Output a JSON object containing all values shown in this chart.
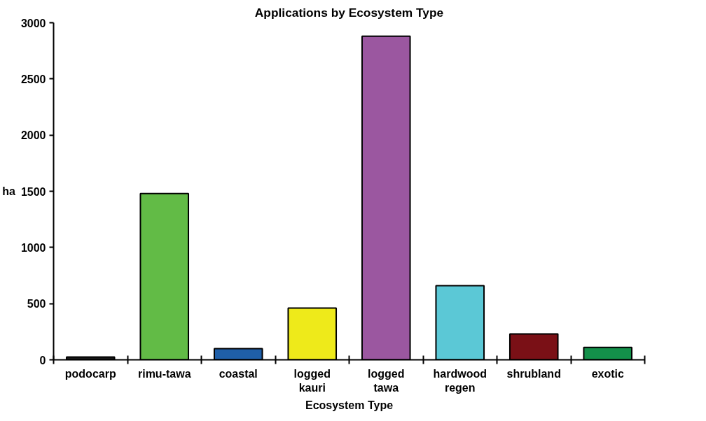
{
  "chart_data": {
    "type": "bar",
    "title": "Applications by Ecosystem Type",
    "xlabel": "Ecosystem Type",
    "ylabel": "ha",
    "categories": [
      "podocarp",
      "rimu-tawa",
      "coastal",
      "logged kauri",
      "logged tawa",
      "hardwood regen",
      "shrubland",
      "exotic"
    ],
    "values": [
      25,
      1480,
      100,
      460,
      2880,
      660,
      230,
      110
    ],
    "colors": [
      "#1a1a1a",
      "#62bb46",
      "#1f5fa8",
      "#eeea1a",
      "#9b57a0",
      "#5bc8d6",
      "#7a1016",
      "#13904a"
    ],
    "ylim": [
      0,
      3000
    ],
    "yticks": [
      0,
      500,
      1000,
      1500,
      2000,
      2500,
      3000
    ],
    "grid": false
  }
}
